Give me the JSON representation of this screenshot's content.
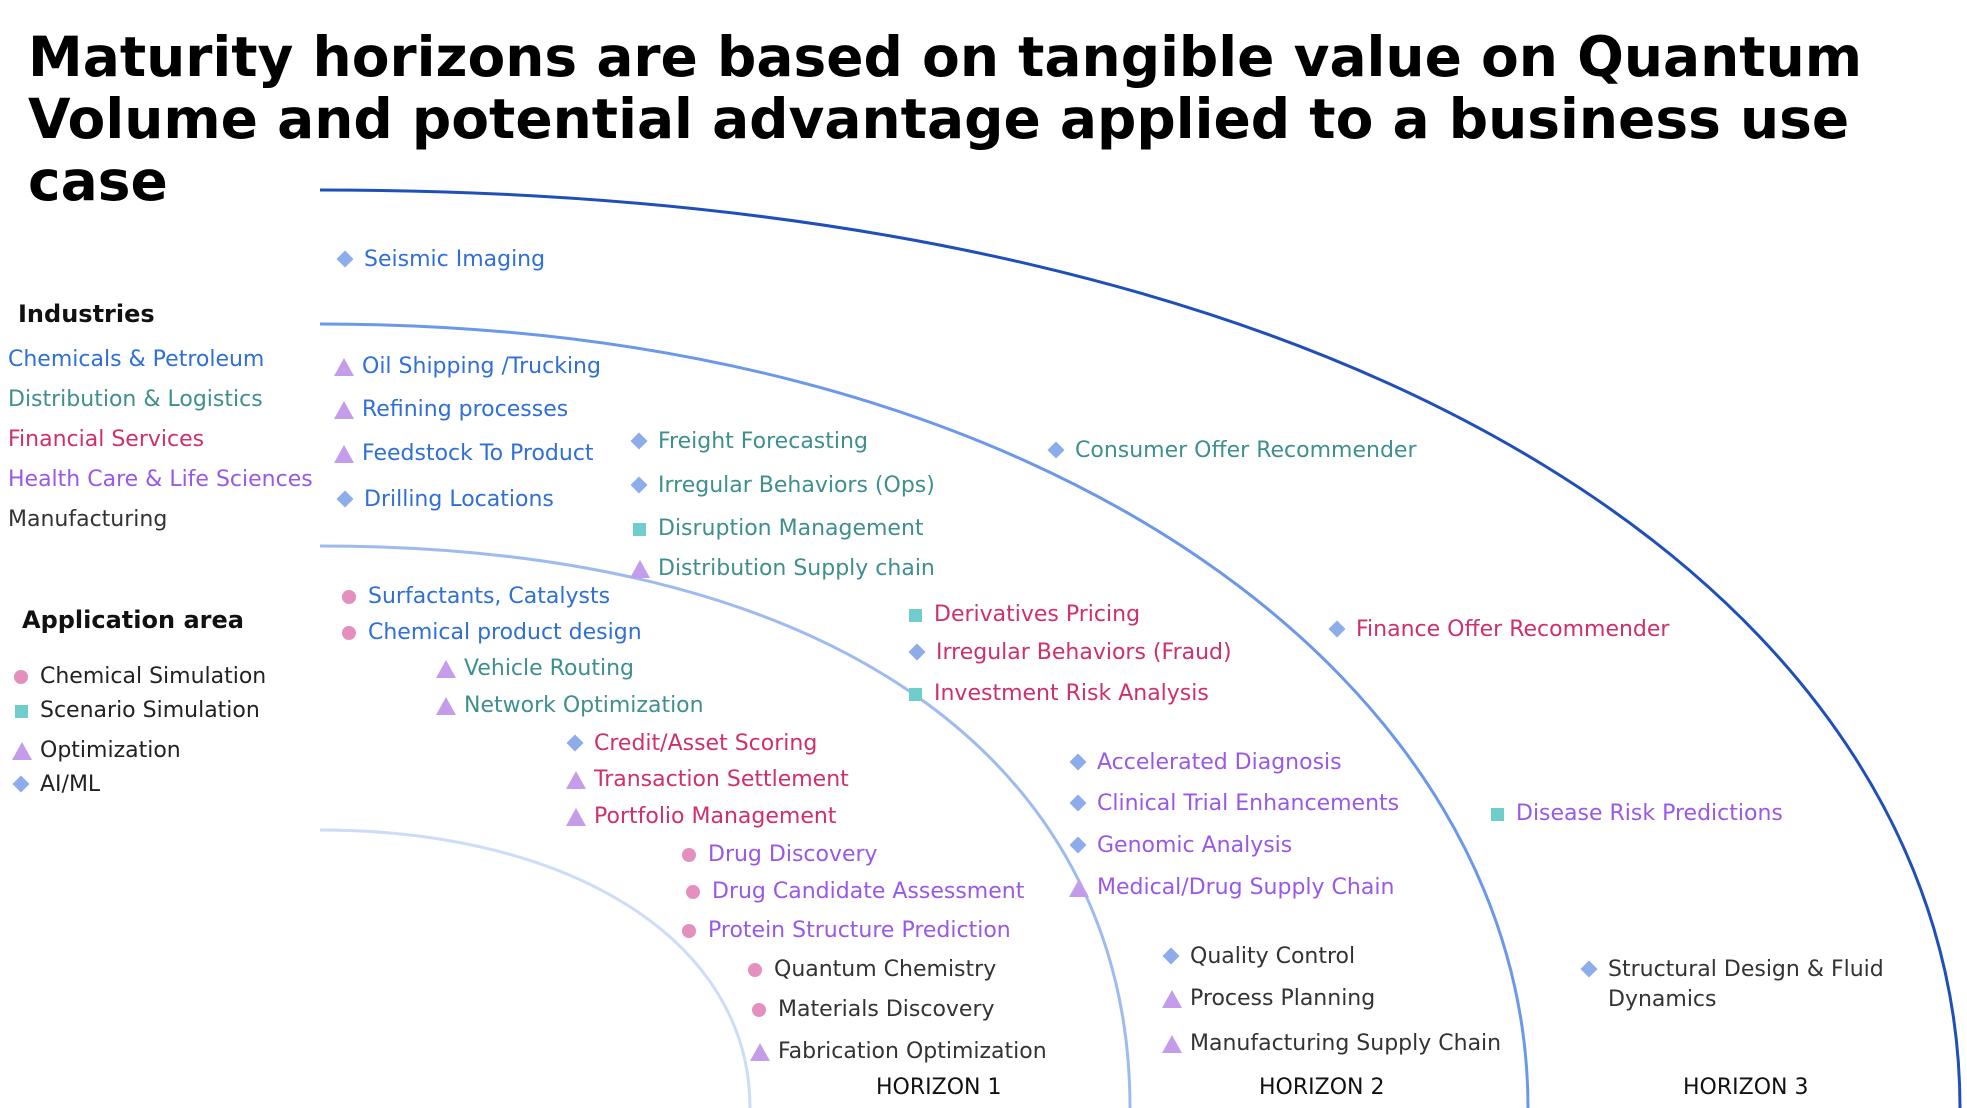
{
  "title": "Maturity horizons are based on tangible value on Quantum Volume and potential advantage applied to a business use case",
  "industries": {
    "heading": "Industries",
    "items": [
      {
        "key": "chem",
        "label": "Chemicals & Petroleum",
        "color": "#2f6fd6"
      },
      {
        "key": "dist",
        "label": "Distribution & Logistics",
        "color": "#3f8f8f"
      },
      {
        "key": "fin",
        "label": "Financial Services",
        "color": "#cf2f6f"
      },
      {
        "key": "health",
        "label": "Health Care & Life Sciences",
        "color": "#9a58e6"
      },
      {
        "key": "mfg",
        "label": "Manufacturing",
        "color": "#333333"
      }
    ]
  },
  "application_area": {
    "heading": "Application area",
    "items": [
      {
        "label": "Chemical Simulation",
        "marker": "circle"
      },
      {
        "label": "Scenario Simulation",
        "marker": "square"
      },
      {
        "label": "Optimization",
        "marker": "triangle"
      },
      {
        "label": "AI/ML",
        "marker": "diamond"
      }
    ]
  },
  "horizons": [
    "HORIZON 1",
    "HORIZON 2",
    "HORIZON 3"
  ],
  "use_cases": [
    {
      "label": "Seismic Imaging",
      "industry": "chem",
      "marker": "diamond"
    },
    {
      "label": "Oil Shipping /Trucking",
      "industry": "chem",
      "marker": "triangle"
    },
    {
      "label": "Refining processes",
      "industry": "chem",
      "marker": "triangle"
    },
    {
      "label": "Feedstock To Product",
      "industry": "chem",
      "marker": "triangle"
    },
    {
      "label": "Drilling Locations",
      "industry": "chem",
      "marker": "diamond"
    },
    {
      "label": "Freight Forecasting",
      "industry": "dist",
      "marker": "diamond"
    },
    {
      "label": "Irregular Behaviors (Ops)",
      "industry": "dist",
      "marker": "diamond"
    },
    {
      "label": "Disruption Management",
      "industry": "dist",
      "marker": "square"
    },
    {
      "label": "Distribution Supply chain",
      "industry": "dist",
      "marker": "triangle"
    },
    {
      "label": "Consumer Offer Recommender",
      "industry": "dist",
      "marker": "diamond"
    },
    {
      "label": "Surfactants, Catalysts",
      "industry": "chem",
      "marker": "circle"
    },
    {
      "label": "Chemical product design",
      "industry": "chem",
      "marker": "circle"
    },
    {
      "label": "Vehicle Routing",
      "industry": "dist",
      "marker": "triangle"
    },
    {
      "label": "Network Optimization",
      "industry": "dist",
      "marker": "triangle"
    },
    {
      "label": "Derivatives Pricing",
      "industry": "fin",
      "marker": "square"
    },
    {
      "label": "Irregular Behaviors (Fraud)",
      "industry": "fin",
      "marker": "diamond"
    },
    {
      "label": "Investment Risk Analysis",
      "industry": "fin",
      "marker": "square"
    },
    {
      "label": "Finance Offer Recommender",
      "industry": "fin",
      "marker": "diamond"
    },
    {
      "label": "Credit/Asset Scoring",
      "industry": "fin",
      "marker": "diamond"
    },
    {
      "label": "Transaction Settlement",
      "industry": "fin",
      "marker": "triangle"
    },
    {
      "label": "Portfolio Management",
      "industry": "fin",
      "marker": "triangle"
    },
    {
      "label": "Accelerated Diagnosis",
      "industry": "health",
      "marker": "diamond"
    },
    {
      "label": "Clinical Trial Enhancements",
      "industry": "health",
      "marker": "diamond"
    },
    {
      "label": "Genomic Analysis",
      "industry": "health",
      "marker": "diamond"
    },
    {
      "label": "Medical/Drug Supply Chain",
      "industry": "health",
      "marker": "triangle"
    },
    {
      "label": "Disease Risk Predictions",
      "industry": "health",
      "marker": "square"
    },
    {
      "label": "Drug Discovery",
      "industry": "health",
      "marker": "circle"
    },
    {
      "label": "Drug Candidate Assessment",
      "industry": "health",
      "marker": "circle"
    },
    {
      "label": "Protein Structure Prediction",
      "industry": "health",
      "marker": "circle"
    },
    {
      "label": "Quantum Chemistry",
      "industry": "mfg",
      "marker": "circle"
    },
    {
      "label": "Materials Discovery",
      "industry": "mfg",
      "marker": "circle"
    },
    {
      "label": "Fabrication Optimization",
      "industry": "mfg",
      "marker": "triangle"
    },
    {
      "label": "Quality Control",
      "industry": "mfg",
      "marker": "diamond"
    },
    {
      "label": "Process Planning",
      "industry": "mfg",
      "marker": "triangle"
    },
    {
      "label": "Manufacturing Supply Chain",
      "industry": "mfg",
      "marker": "triangle"
    },
    {
      "label": "Structural Design & Fluid\nDynamics",
      "industry": "mfg",
      "marker": "diamond"
    }
  ]
}
